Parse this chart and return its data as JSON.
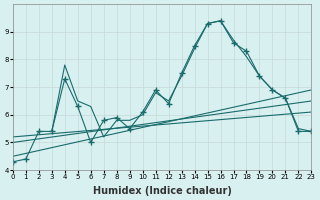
{
  "xlabel": "Humidex (Indice chaleur)",
  "bg_color": "#d8f0f0",
  "grid_color": "#c8d8d8",
  "line_color": "#1a6b6b",
  "xlim": [
    0,
    23
  ],
  "ylim": [
    4,
    10
  ],
  "yticks": [
    4,
    5,
    6,
    7,
    8,
    9
  ],
  "xticks": [
    0,
    1,
    2,
    3,
    4,
    5,
    6,
    7,
    8,
    9,
    10,
    11,
    12,
    13,
    14,
    15,
    16,
    17,
    18,
    19,
    20,
    21,
    22,
    23
  ],
  "lines": [
    {
      "x": [
        0,
        1,
        2,
        3,
        4,
        5,
        6,
        7,
        8,
        9,
        10,
        11,
        12,
        13,
        14,
        15,
        16,
        17,
        18,
        19,
        20,
        21,
        22,
        23
      ],
      "y": [
        4.3,
        4.4,
        5.4,
        5.4,
        7.3,
        6.3,
        5.0,
        5.8,
        5.9,
        5.5,
        6.1,
        6.9,
        6.4,
        7.5,
        8.5,
        9.3,
        9.4,
        8.6,
        8.3,
        7.4,
        6.9,
        6.6,
        5.4,
        5.4
      ],
      "has_markers": true
    },
    {
      "x": [
        3,
        4,
        5,
        6,
        7,
        8,
        9,
        10,
        11,
        12,
        13,
        14,
        15,
        16,
        17,
        18,
        19,
        20,
        21,
        22,
        23
      ],
      "y": [
        5.4,
        7.8,
        6.5,
        6.3,
        5.2,
        5.8,
        5.8,
        6.0,
        6.8,
        6.5,
        7.4,
        8.4,
        9.3,
        9.4,
        8.7,
        8.1,
        7.4,
        6.9,
        6.6,
        5.5,
        5.4
      ],
      "has_markers": false
    },
    {
      "x": [
        0,
        23
      ],
      "y": [
        4.5,
        6.9
      ],
      "has_markers": false
    },
    {
      "x": [
        0,
        23
      ],
      "y": [
        5.0,
        6.5
      ],
      "has_markers": false
    },
    {
      "x": [
        0,
        23
      ],
      "y": [
        5.2,
        6.1
      ],
      "has_markers": false
    }
  ]
}
